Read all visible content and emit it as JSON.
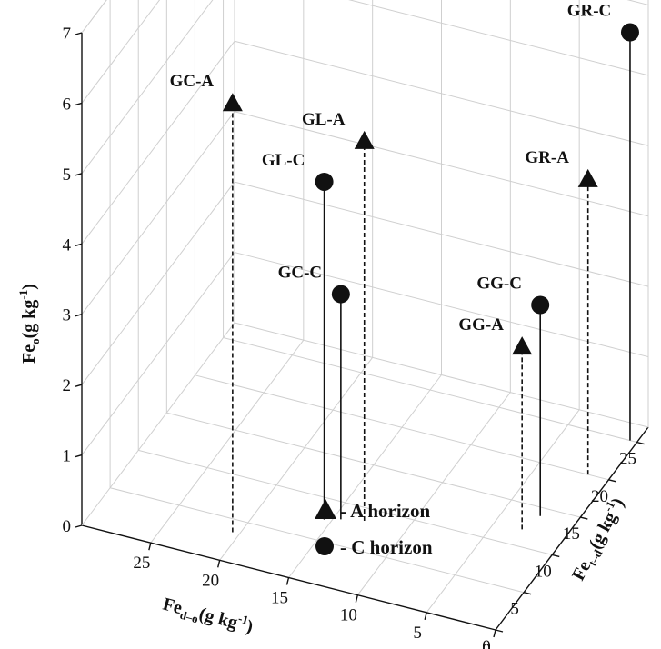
{
  "chart_data": {
    "type": "scatter",
    "subtype": "3d-stem",
    "xlabel_main": "Fe",
    "xlabel_sub": "d–o",
    "xlabel_unit": "(g kg",
    "xlabel_exp": "-1",
    "ylabel_main": "Fe",
    "ylabel_sub": "t–d",
    "ylabel_unit": "(g kg",
    "ylabel_exp": "-1",
    "zlabel_main": "Fe",
    "zlabel_sub": "o",
    "zlabel_unit": "(g kg",
    "zlabel_exp": "-1",
    "xlim": [
      0,
      30
    ],
    "ylim": [
      0,
      27
    ],
    "zlim": [
      0,
      7
    ],
    "x_ticks": [
      "0",
      "5",
      "10",
      "15",
      "20",
      "25"
    ],
    "y_ticks": [
      "0",
      "5",
      "10",
      "15",
      "20",
      "25"
    ],
    "z_ticks": [
      "0",
      "1",
      "2",
      "3",
      "4",
      "5",
      "6",
      "7"
    ],
    "grid": true,
    "legend_position": "bottom-center",
    "series": [
      {
        "name": "A horizon",
        "marker": "triangle",
        "stem": "dashed",
        "points": [
          {
            "label": "GC-A",
            "x": 20.5,
            "y": 3.5,
            "z": 6.1
          },
          {
            "label": "GL-A",
            "x": 13.0,
            "y": 8.5,
            "z": 5.4
          },
          {
            "label": "GG-A",
            "x": 3.0,
            "y": 12.0,
            "z": 2.6
          },
          {
            "label": "GR-A",
            "x": 1.5,
            "y": 20.0,
            "z": 4.2
          }
        ]
      },
      {
        "name": "C horizon",
        "marker": "circle",
        "stem": "solid",
        "points": [
          {
            "label": "GL-C",
            "x": 15.5,
            "y": 7.5,
            "z": 4.8
          },
          {
            "label": "GC-C",
            "x": 14.5,
            "y": 8.0,
            "z": 3.2
          },
          {
            "label": "GG-C",
            "x": 2.5,
            "y": 14.0,
            "z": 3.0
          },
          {
            "label": "GR-C",
            "x": 0.5,
            "y": 25.0,
            "z": 5.8
          }
        ]
      }
    ],
    "legend": [
      {
        "marker": "triangle",
        "text": "- A  horizon"
      },
      {
        "marker": "circle",
        "text": "- C  horizon"
      }
    ]
  },
  "colors": {
    "marker": "#111111",
    "axis": "#111111",
    "grid": "#cfcfcf"
  }
}
